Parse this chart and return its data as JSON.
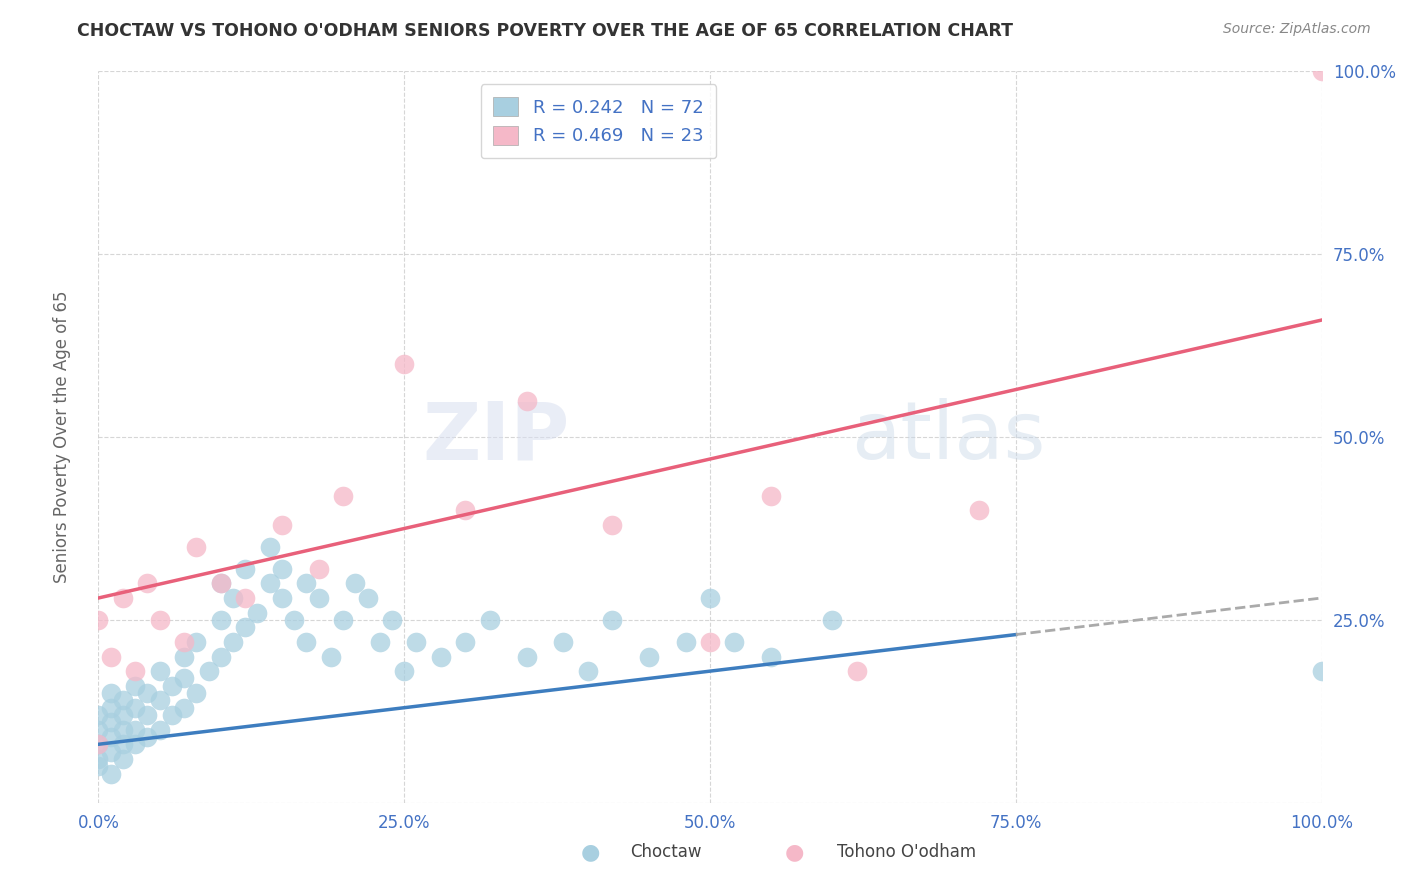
{
  "title": "CHOCTAW VS TOHONO O'ODHAM SENIORS POVERTY OVER THE AGE OF 65 CORRELATION CHART",
  "source": "Source: ZipAtlas.com",
  "ylabel": "Seniors Poverty Over the Age of 65",
  "watermark_zip": "ZIP",
  "watermark_atlas": "atlas",
  "choctaw_R": 0.242,
  "choctaw_N": 72,
  "tohono_R": 0.469,
  "tohono_N": 23,
  "choctaw_scatter_color": "#a8cfe0",
  "tohono_scatter_color": "#f5b8c8",
  "choctaw_line_color": "#3d7dbf",
  "tohono_line_color": "#e8607a",
  "choctaw_line_dash_color": "#aaaaaa",
  "legend_choctaw_color": "#a8cfe0",
  "legend_tohono_color": "#f5b8c8",
  "grid_color": "#cccccc",
  "background_color": "#ffffff",
  "title_color": "#333333",
  "axis_label_color": "#666666",
  "tick_label_color": "#4472c4",
  "source_color": "#888888",
  "choctaw_x": [
    0.0,
    0.0,
    0.0,
    0.0,
    0.0,
    0.01,
    0.01,
    0.01,
    0.01,
    0.01,
    0.01,
    0.02,
    0.02,
    0.02,
    0.02,
    0.02,
    0.03,
    0.03,
    0.03,
    0.03,
    0.04,
    0.04,
    0.04,
    0.05,
    0.05,
    0.05,
    0.06,
    0.06,
    0.07,
    0.07,
    0.07,
    0.08,
    0.08,
    0.09,
    0.1,
    0.1,
    0.1,
    0.11,
    0.11,
    0.12,
    0.12,
    0.13,
    0.14,
    0.14,
    0.15,
    0.15,
    0.16,
    0.17,
    0.17,
    0.18,
    0.19,
    0.2,
    0.21,
    0.22,
    0.23,
    0.24,
    0.25,
    0.26,
    0.28,
    0.3,
    0.32,
    0.35,
    0.38,
    0.4,
    0.42,
    0.45,
    0.48,
    0.5,
    0.52,
    0.55,
    0.6,
    1.0
  ],
  "choctaw_y": [
    0.05,
    0.06,
    0.08,
    0.1,
    0.12,
    0.04,
    0.07,
    0.09,
    0.11,
    0.13,
    0.15,
    0.06,
    0.08,
    0.1,
    0.12,
    0.14,
    0.08,
    0.1,
    0.13,
    0.16,
    0.09,
    0.12,
    0.15,
    0.1,
    0.14,
    0.18,
    0.12,
    0.16,
    0.13,
    0.17,
    0.2,
    0.15,
    0.22,
    0.18,
    0.2,
    0.25,
    0.3,
    0.22,
    0.28,
    0.24,
    0.32,
    0.26,
    0.3,
    0.35,
    0.28,
    0.32,
    0.25,
    0.3,
    0.22,
    0.28,
    0.2,
    0.25,
    0.3,
    0.28,
    0.22,
    0.25,
    0.18,
    0.22,
    0.2,
    0.22,
    0.25,
    0.2,
    0.22,
    0.18,
    0.25,
    0.2,
    0.22,
    0.28,
    0.22,
    0.2,
    0.25,
    0.18
  ],
  "tohono_x": [
    0.0,
    0.0,
    0.01,
    0.02,
    0.03,
    0.04,
    0.05,
    0.07,
    0.08,
    0.1,
    0.12,
    0.15,
    0.18,
    0.2,
    0.25,
    0.3,
    0.35,
    0.42,
    0.5,
    0.55,
    0.62,
    0.72,
    1.0
  ],
  "tohono_y": [
    0.08,
    0.25,
    0.2,
    0.28,
    0.18,
    0.3,
    0.25,
    0.22,
    0.35,
    0.3,
    0.28,
    0.38,
    0.32,
    0.42,
    0.6,
    0.4,
    0.55,
    0.38,
    0.22,
    0.42,
    0.18,
    0.4,
    1.0
  ],
  "choctaw_line_x0": 0.0,
  "choctaw_line_x1": 0.75,
  "choctaw_line_dash_x0": 0.75,
  "choctaw_line_dash_x1": 1.0,
  "choctaw_line_y_intercept": 0.08,
  "choctaw_line_slope": 0.2,
  "tohono_line_x0": 0.0,
  "tohono_line_x1": 1.0,
  "tohono_line_y_intercept": 0.28,
  "tohono_line_slope": 0.38,
  "xlim": [
    0.0,
    1.0
  ],
  "ylim": [
    0.0,
    1.0
  ],
  "xticks": [
    0.0,
    0.25,
    0.5,
    0.75,
    1.0
  ],
  "yticks": [
    0.0,
    0.25,
    0.5,
    0.75,
    1.0
  ],
  "xticklabels": [
    "0.0%",
    "25.0%",
    "50.0%",
    "75.0%",
    "100.0%"
  ],
  "right_yticklabels": [
    "25.0%",
    "50.0%",
    "75.0%",
    "100.0%"
  ]
}
